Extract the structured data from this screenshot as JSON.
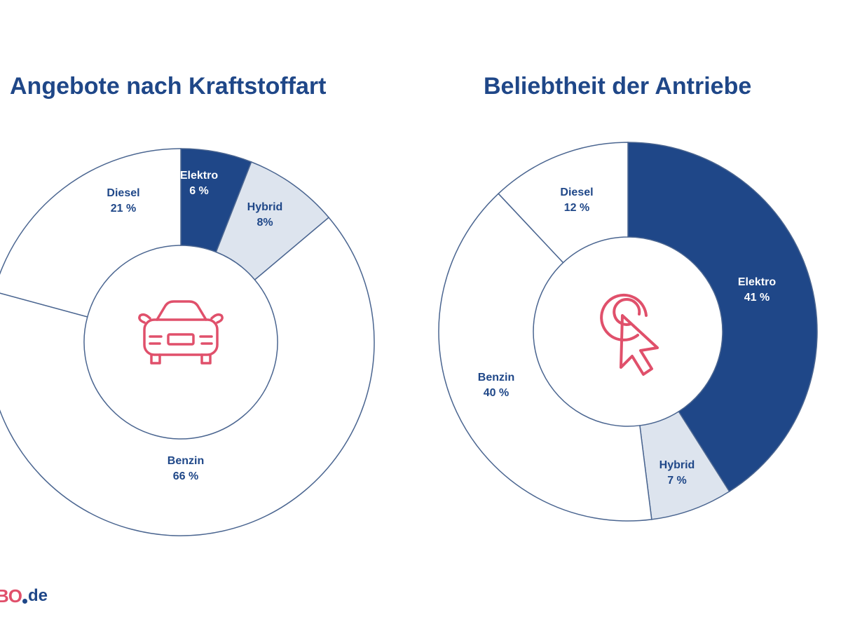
{
  "chart_data": [
    {
      "type": "donut",
      "title": "Angebote nach Kraftstoffart",
      "center_icon": "car-icon",
      "segments": [
        {
          "name": "Elektro",
          "value": 6,
          "label": "6 %",
          "color": "#1f4788",
          "text_color": "#ffffff"
        },
        {
          "name": "Hybrid",
          "value": 8,
          "label": "8%",
          "color": "#dde4ee",
          "text_color": "#1f4788"
        },
        {
          "name": "Benzin",
          "value": 66,
          "label": "66 %",
          "color": "#ffffff",
          "text_color": "#1f4788"
        },
        {
          "name": "Diesel",
          "value": 21,
          "label": "21 %",
          "color": "#ffffff",
          "text_color": "#1f4788"
        }
      ]
    },
    {
      "type": "donut",
      "title": "Beliebtheit der Antriebe",
      "center_icon": "click-pointer-icon",
      "segments": [
        {
          "name": "Elektro",
          "value": 41,
          "label": "41 %",
          "color": "#1f4788",
          "text_color": "#ffffff"
        },
        {
          "name": "Hybrid",
          "value": 7,
          "label": "7 %",
          "color": "#dde4ee",
          "text_color": "#1f4788"
        },
        {
          "name": "Benzin",
          "value": 40,
          "label": "40 %",
          "color": "#ffffff",
          "text_color": "#1f4788"
        },
        {
          "name": "Diesel",
          "value": 12,
          "label": "12 %",
          "color": "#ffffff",
          "text_color": "#1f4788"
        }
      ]
    }
  ],
  "colors": {
    "accent": "#1f4788",
    "icon": "#e0506b",
    "outline": "#4a6590"
  },
  "logo": {
    "brand": "BO",
    "tld": "de"
  }
}
